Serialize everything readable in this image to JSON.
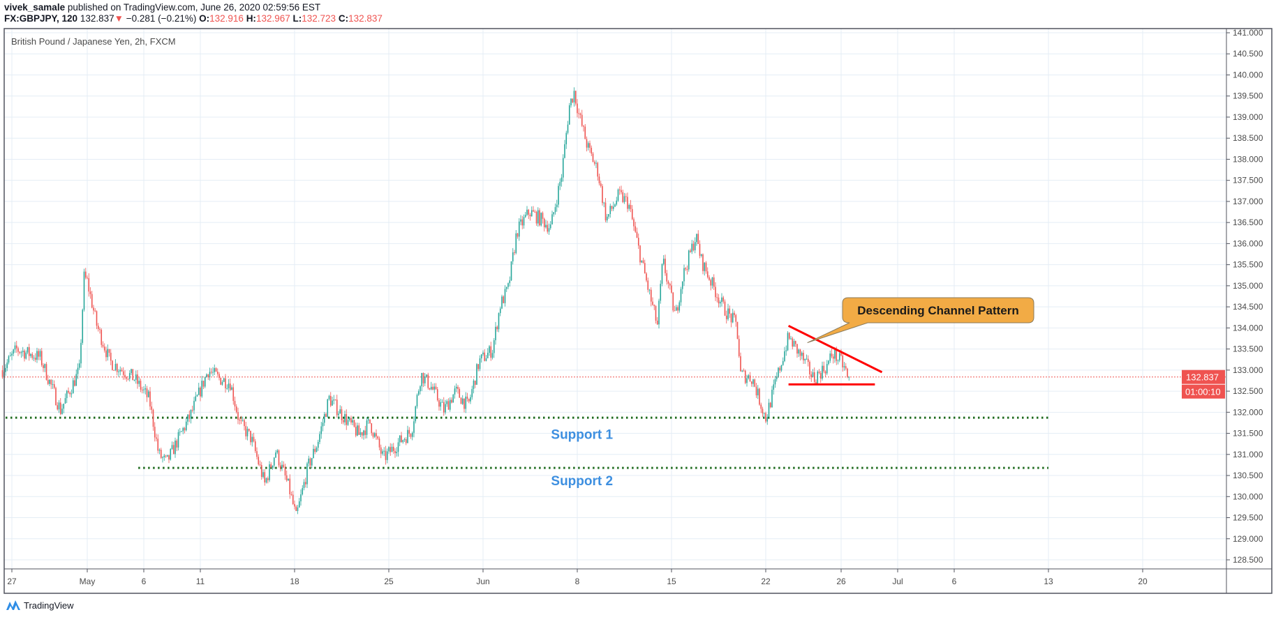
{
  "header": {
    "author": "vivek_samale",
    "published_text": "published on TradingView.com, June 26, 2020 02:59:56 EST",
    "symbol": "FX:GBPJPY, 120",
    "last": "132.837",
    "change": "−0.281 (−0.21%)",
    "o_label": "O:",
    "o": "132.916",
    "h_label": "H:",
    "h": "132.967",
    "l_label": "L:",
    "l": "132.723",
    "c_label": "C:",
    "c": "132.837"
  },
  "footer": {
    "brand": "TradingView",
    "icon": "tradingview-logo-icon"
  },
  "colors": {
    "up": "#26a69a",
    "down": "#ef5350",
    "support": "#1e6b1e",
    "pattern": "#ff0000",
    "callout": "#f2ab45",
    "label": "#3d8fe0",
    "grid": "#e4edf5"
  },
  "chart_data": {
    "type": "candlestick",
    "title": "British Pound / Japanese Yen, 2h, FXCM",
    "interval": "2h",
    "ylim": [
      128.25,
      141.1
    ],
    "price_ticks": [
      "128.500",
      "129.000",
      "129.500",
      "130.000",
      "130.500",
      "131.000",
      "131.500",
      "132.000",
      "132.500",
      "133.000",
      "133.500",
      "134.000",
      "134.500",
      "135.000",
      "135.500",
      "136.000",
      "136.500",
      "137.000",
      "137.500",
      "138.000",
      "138.500",
      "139.000",
      "139.500",
      "140.000",
      "140.500",
      "141.000"
    ],
    "date_ticks": [
      {
        "label": "27",
        "date": "2020-04-27"
      },
      {
        "label": "May",
        "date": "2020-05-01"
      },
      {
        "label": "6",
        "date": "2020-05-06"
      },
      {
        "label": "11",
        "date": "2020-05-11"
      },
      {
        "label": "18",
        "date": "2020-05-18"
      },
      {
        "label": "25",
        "date": "2020-05-25"
      },
      {
        "label": "Jun",
        "date": "2020-06-01"
      },
      {
        "label": "8",
        "date": "2020-06-08"
      },
      {
        "label": "15",
        "date": "2020-06-15"
      },
      {
        "label": "22",
        "date": "2020-06-22"
      },
      {
        "label": "26",
        "date": "2020-06-26"
      },
      {
        "label": "Jul",
        "date": "2020-07-01"
      },
      {
        "label": "6",
        "date": "2020-07-06"
      },
      {
        "label": "13",
        "date": "2020-07-13"
      },
      {
        "label": "20",
        "date": "2020-07-20"
      }
    ],
    "close_path": [
      [
        "2020-04-24 12:00",
        133.0
      ],
      [
        "2020-04-27 06:00",
        133.49
      ],
      [
        "2020-04-28 12:00",
        133.3
      ],
      [
        "2020-04-29 14:00",
        132.05
      ],
      [
        "2020-04-30 14:00",
        133.0
      ],
      [
        "2020-04-30 20:00",
        135.2
      ],
      [
        "2020-05-01 00:00",
        135.1
      ],
      [
        "2020-05-01 12:00",
        134.07
      ],
      [
        "2020-05-04 05:00",
        133.2
      ],
      [
        "2020-05-05 12:00",
        132.8
      ],
      [
        "2020-05-06 07:00",
        132.3
      ],
      [
        "2020-05-06 19:00",
        131.0
      ],
      [
        "2020-05-07 05:00",
        130.8
      ],
      [
        "2020-05-07 20:00",
        131.37
      ],
      [
        "2020-05-08 12:00",
        131.95
      ],
      [
        "2020-05-11 10:00",
        133.0
      ],
      [
        "2020-05-12 00:00",
        132.8
      ],
      [
        "2020-05-12 14:00",
        132.7
      ],
      [
        "2020-05-13 02:00",
        131.75
      ],
      [
        "2020-05-13 17:00",
        131.37
      ],
      [
        "2020-05-14 10:00",
        130.3
      ],
      [
        "2020-05-15 00:00",
        131.08
      ],
      [
        "2020-05-15 17:00",
        130.2
      ],
      [
        "2020-05-18 02:00",
        129.5
      ],
      [
        "2020-05-18 17:00",
        130.7
      ],
      [
        "2020-05-19 05:00",
        131.27
      ],
      [
        "2020-05-19 20:00",
        132.33
      ],
      [
        "2020-05-20 12:00",
        131.95
      ],
      [
        "2020-05-21 10:00",
        131.47
      ],
      [
        "2020-05-22 00:00",
        131.75
      ],
      [
        "2020-05-22 17:00",
        130.9
      ],
      [
        "2020-05-25 12:00",
        131.27
      ],
      [
        "2020-05-26 05:00",
        131.56
      ],
      [
        "2020-05-26 17:00",
        132.9
      ],
      [
        "2020-05-27 06:00",
        132.6
      ],
      [
        "2020-05-27 22:00",
        132.05
      ],
      [
        "2020-05-28 13:00",
        132.5
      ],
      [
        "2020-05-29 05:00",
        132.14
      ],
      [
        "2020-05-29 19:00",
        133.2
      ],
      [
        "2020-06-01 12:00",
        133.49
      ],
      [
        "2020-06-01 22:00",
        134.55
      ],
      [
        "2020-06-02 08:00",
        134.93
      ],
      [
        "2020-06-02 19:00",
        136.28
      ],
      [
        "2020-06-03 11:00",
        136.76
      ],
      [
        "2020-06-04 02:00",
        136.57
      ],
      [
        "2020-06-04 14:00",
        136.38
      ],
      [
        "2020-06-05 04:00",
        137.63
      ],
      [
        "2020-06-05 14:00",
        139.27
      ],
      [
        "2020-06-05 20:00",
        139.6
      ],
      [
        "2020-06-08 02:00",
        139.07
      ],
      [
        "2020-06-08 13:00",
        138.3
      ],
      [
        "2020-06-09 02:00",
        137.72
      ],
      [
        "2020-06-09 13:00",
        136.57
      ],
      [
        "2020-06-10 05:00",
        137.15
      ],
      [
        "2020-06-10 17:00",
        136.96
      ],
      [
        "2020-06-11 07:00",
        135.8
      ],
      [
        "2020-06-11 22:00",
        134.64
      ],
      [
        "2020-06-12 06:00",
        134.07
      ],
      [
        "2020-06-12 13:00",
        135.6
      ],
      [
        "2020-06-15 05:00",
        134.26
      ],
      [
        "2020-06-15 14:00",
        135.2
      ],
      [
        "2020-06-16 07:00",
        136.18
      ],
      [
        "2020-06-16 14:00",
        135.6
      ],
      [
        "2020-06-17 04:00",
        135.03
      ],
      [
        "2020-06-17 19:00",
        134.45
      ],
      [
        "2020-06-18 11:00",
        134.07
      ],
      [
        "2020-06-18 16:00",
        132.9
      ],
      [
        "2020-06-19 07:00",
        132.8
      ],
      [
        "2020-06-22 00:00",
        131.85
      ],
      [
        "2020-06-22 14:00",
        132.8
      ],
      [
        "2020-06-23 05:00",
        133.78
      ],
      [
        "2020-06-23 22:00",
        133.3
      ],
      [
        "2020-06-24 13:00",
        132.8
      ],
      [
        "2020-06-25 06:00",
        133.1
      ],
      [
        "2020-06-25 13:00",
        133.4
      ],
      [
        "2020-06-26 00:00",
        133.2
      ],
      [
        "2020-06-26 10:00",
        132.837
      ]
    ],
    "last_price": {
      "value": 132.837,
      "label": "132.837",
      "countdown": "01:00:10"
    },
    "annotations": {
      "descending_line": {
        "from": [
          "2020-06-23 05:00",
          134.05
        ],
        "to": [
          "2020-06-30 04:00",
          132.95
        ]
      },
      "base_line": {
        "from": [
          "2020-06-23 05:00",
          132.66
        ],
        "to": [
          "2020-06-29 19:00",
          132.66
        ]
      },
      "callout": {
        "text": "Descending Channel Pattern",
        "points_to": [
          "2020-06-24 05:00",
          133.65
        ]
      },
      "supports": [
        {
          "label": "Support 1",
          "price": 131.87,
          "from": "2020-04-24 12:00",
          "to": "2020-07-13 00:00",
          "label_at": [
            "2020-06-08 06:00",
            131.47
          ]
        },
        {
          "label": "Support 2",
          "price": 130.68,
          "from": "2020-05-05 17:00",
          "to": "2020-07-13 00:00",
          "label_at": [
            "2020-06-08 06:00",
            130.37
          ]
        }
      ]
    }
  }
}
